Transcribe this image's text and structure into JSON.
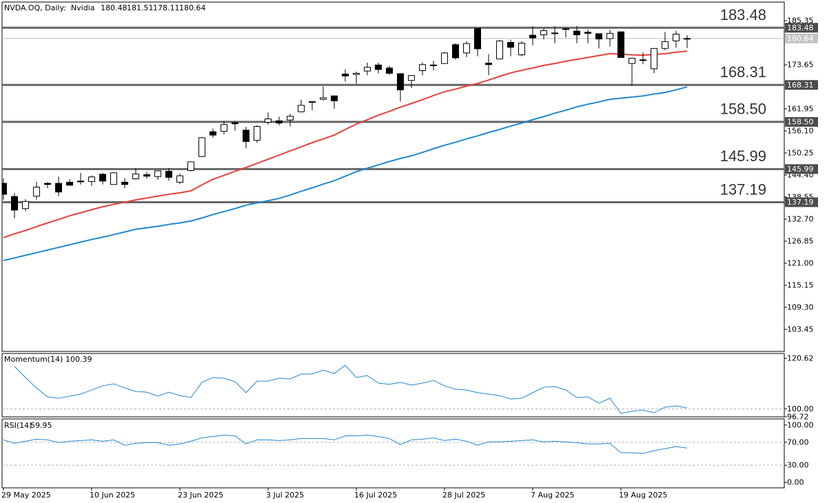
{
  "chart_data": [
    {
      "type": "candlestick",
      "title": "NVDA.OQ, Daily:  Nvidia",
      "categories": [
        "29 May 2025",
        null,
        null,
        null,
        null,
        null,
        null,
        null,
        "10 Jun 2025",
        null,
        null,
        null,
        null,
        null,
        null,
        null,
        "23 Jun 2025",
        null,
        null,
        null,
        null,
        null,
        null,
        null,
        "3 Jul 2025",
        null,
        null,
        null,
        null,
        null,
        null,
        null,
        "16 Jul 2025",
        null,
        null,
        null,
        null,
        null,
        null,
        null,
        "28 Jul 2025",
        null,
        null,
        null,
        null,
        null,
        null,
        null,
        "7 Aug 2025",
        null,
        null,
        null,
        null,
        null,
        null,
        null,
        "19 Aug 2025",
        null,
        null,
        null,
        null,
        null,
        null
      ],
      "open": [
        142.2,
        138.7,
        135.5,
        138.8,
        142.2,
        142.2,
        142.5,
        142.8,
        142.7,
        144.6,
        141.9,
        142.5,
        143.4,
        144.5,
        144.0,
        145.4,
        142.5,
        145.6,
        149.3,
        155.9,
        156.0,
        158.3,
        156.3,
        153.6,
        158.4,
        158.8,
        159.0,
        161.2,
        163.7,
        164.5,
        165.4,
        171.2,
        171.1,
        172.0,
        173.6,
        172.8,
        171.3,
        169.5,
        172.1,
        173.6,
        174.0,
        179.0,
        176.8,
        183.3,
        174.1,
        175.2,
        179.6,
        176.3,
        181.5,
        181.6,
        182.1,
        183.1,
        182.6,
        182.3,
        181.9,
        180.6,
        182.4,
        174.0,
        174.8,
        172.6,
        178.0,
        180.0,
        180.48
      ],
      "high": [
        143.5,
        139.6,
        138.0,
        142.6,
        142.5,
        144.0,
        143.3,
        145.0,
        144.3,
        144.99,
        145.2,
        143.6,
        146.2,
        145.2,
        145.6,
        146.2,
        144.8,
        147.9,
        154.5,
        156.7,
        158.7,
        158.7,
        157.2,
        157.6,
        160.98,
        159.9,
        160.6,
        164.4,
        164.0,
        167.9,
        165.5,
        172.4,
        171.8,
        174.2,
        174.2,
        173.4,
        171.4,
        170.9,
        174.3,
        174.7,
        177.1,
        179.4,
        179.9,
        183.3,
        176.5,
        180.3,
        180.3,
        179.9,
        183.9,
        183.3,
        183.9,
        183.5,
        183.9,
        183.0,
        181.9,
        182.9,
        182.5,
        175.5,
        176.9,
        178.0,
        182.4,
        182.7,
        181.51
      ],
      "low": [
        137.9,
        132.9,
        134.8,
        137.9,
        140.9,
        138.8,
        141.6,
        141.9,
        141.5,
        141.9,
        141.8,
        140.9,
        143.2,
        143.5,
        143.1,
        142.9,
        142.0,
        145.4,
        149.2,
        154.3,
        155.2,
        156.2,
        151.5,
        153.0,
        157.8,
        157.6,
        157.3,
        161.0,
        161.6,
        164.2,
        162.0,
        169.2,
        168.6,
        170.9,
        171.3,
        171.0,
        163.9,
        167.5,
        170.9,
        172.2,
        173.9,
        175.0,
        175.7,
        175.9,
        170.9,
        175.2,
        175.9,
        175.9,
        178.8,
        180.4,
        179.4,
        180.9,
        179.4,
        179.4,
        178.0,
        178.5,
        175.5,
        168.2,
        173.8,
        171.4,
        177.5,
        178.2,
        178.11
      ],
      "close": [
        139.3,
        135.1,
        137.4,
        141.2,
        141.9,
        139.9,
        141.7,
        142.6,
        143.9,
        142.8,
        145.0,
        141.9,
        144.7,
        144.1,
        145.5,
        143.8,
        144.2,
        147.9,
        154.3,
        155.0,
        157.8,
        157.99,
        153.3,
        157.3,
        159.3,
        158.2,
        160.0,
        162.9,
        163.9,
        164.9,
        164.1,
        170.7,
        171.4,
        173.0,
        172.4,
        171.4,
        167.0,
        170.8,
        173.7,
        173.5,
        176.8,
        175.5,
        179.3,
        177.9,
        173.7,
        180.0,
        178.3,
        179.4,
        180.8,
        182.7,
        182.1,
        183.2,
        181.6,
        182.0,
        180.5,
        182.0,
        175.6,
        175.4,
        174.98,
        177.99,
        179.8,
        181.8,
        180.64
      ],
      "up_color": "#ffffff",
      "down_color": "#000000",
      "overlays": [
        {
          "color": "#e8403c",
          "values": [
            127.8,
            128.8,
            129.7,
            130.7,
            131.7,
            132.6,
            133.6,
            134.4,
            135.2,
            136.0,
            136.6,
            137.2,
            137.8,
            138.3,
            138.8,
            139.3,
            139.7,
            140.2,
            141.8,
            143.3,
            144.3,
            145.4,
            146.4,
            147.5,
            148.6,
            149.7,
            150.8,
            151.9,
            153.0,
            154.0,
            155.0,
            156.5,
            157.9,
            159.1,
            160.3,
            161.3,
            162.4,
            163.4,
            164.4,
            165.5,
            166.5,
            167.2,
            168.0,
            168.7,
            169.6,
            170.6,
            171.5,
            172.2,
            172.8,
            173.5,
            174.0,
            174.6,
            175.1,
            175.6,
            176.1,
            176.6,
            176.5,
            176.3,
            176.2,
            176.4,
            176.6,
            177.0,
            177.3
          ]
        },
        {
          "color": "#1e88d0",
          "values": [
            121.7,
            122.4,
            123.1,
            123.8,
            124.5,
            125.2,
            125.9,
            126.6,
            127.3,
            127.9,
            128.6,
            129.3,
            130.0,
            130.4,
            130.8,
            131.3,
            131.7,
            132.2,
            133.0,
            133.9,
            134.7,
            135.5,
            136.4,
            137.0,
            137.6,
            138.2,
            139.1,
            140.1,
            141.0,
            142.0,
            142.9,
            144.1,
            145.3,
            146.2,
            147.1,
            148.0,
            148.8,
            149.5,
            150.4,
            151.4,
            152.3,
            153.1,
            154.0,
            154.8,
            155.7,
            156.5,
            157.4,
            158.2,
            159.1,
            159.9,
            160.8,
            161.6,
            162.5,
            163.2,
            163.8,
            164.5,
            164.8,
            165.1,
            165.4,
            165.9,
            166.3,
            167.0,
            167.8
          ]
        }
      ],
      "levels": [
        183.48,
        168.31,
        {
          "value": 158.5,
          "label": "158.50"
        },
        145.99,
        137.19
      ],
      "level_color": "#666666",
      "ylim": [
        97.6,
        190.3
      ],
      "yticks": [
        103.45,
        {
          "value": 109.3,
          "label": "109.30"
        },
        115.15,
        {
          "value": 121,
          "label": "121.00"
        },
        126.85,
        {
          "value": 132.7,
          "label": "132.70"
        },
        138.55,
        {
          "value": 144.4,
          "label": "144.40"
        },
        150.25,
        {
          "value": 156.1,
          "label": "156.10"
        },
        161.95,
        173.65,
        185.35
      ]
    },
    {
      "type": "line",
      "title": "Momentum(14)",
      "color": "#1e88d0",
      "values": [
        null,
        117.3,
        112.8,
        108.5,
        104.9,
        104.3,
        105.2,
        106.0,
        107.7,
        109.4,
        110.2,
        108.5,
        107.1,
        106.8,
        105.2,
        106.8,
        105.4,
        104.6,
        110.8,
        112.8,
        112.5,
        111.1,
        106.6,
        111.3,
        111.3,
        112.5,
        112.2,
        114.2,
        114.2,
        115.8,
        114.4,
        117.8,
        112.8,
        113.6,
        110.5,
        110.0,
        110.8,
        109.7,
        110.5,
        111.6,
        109.4,
        108.0,
        107.7,
        106.6,
        106.0,
        105.4,
        104.0,
        104.3,
        106.6,
        108.8,
        109.1,
        107.7,
        104.6,
        104.9,
        102.3,
        104.3,
        98.1,
        99.0,
        99.5,
        98.4,
        100.7,
        101.2,
        100.39
      ],
      "ylim": [
        96.72,
        122.6
      ],
      "yticks": [
        120.62,
        {
          "value": 100,
          "label": "100.00"
        },
        96.72
      ],
      "dashed_levels": [
        100
      ]
    },
    {
      "type": "line",
      "title": "RSI(14)",
      "color": "#1e88d0",
      "values": [
        74.1,
        68.2,
        71.8,
        75.3,
        74.1,
        69.4,
        71.8,
        72.9,
        74.1,
        71.8,
        74.1,
        64.7,
        68.2,
        69.4,
        69.4,
        64.7,
        67.1,
        71.8,
        77.6,
        80.0,
        82.4,
        81.2,
        67.1,
        74.1,
        74.1,
        72.9,
        74.1,
        76.5,
        76.5,
        76.5,
        74.1,
        81.2,
        81.2,
        82.4,
        80.0,
        76.5,
        65.9,
        74.1,
        75.3,
        77.6,
        72.9,
        75.3,
        71.8,
        64.7,
        70.6,
        70.6,
        71.8,
        72.9,
        74.1,
        70.6,
        71.8,
        70.6,
        69.4,
        67.1,
        67.1,
        68.2,
        51.8,
        51.8,
        50.6,
        55.3,
        58.8,
        62.4,
        59.95
      ],
      "ylim": [
        -9.4,
        110.6
      ],
      "yticks": [
        {
          "value": 100,
          "label": "100.00"
        },
        {
          "value": 70,
          "label": "70.00"
        },
        {
          "value": 30,
          "label": "30.00"
        },
        {
          "value": 0,
          "label": "0.00"
        }
      ],
      "dashed_levels": [
        70,
        30
      ]
    }
  ]
}
